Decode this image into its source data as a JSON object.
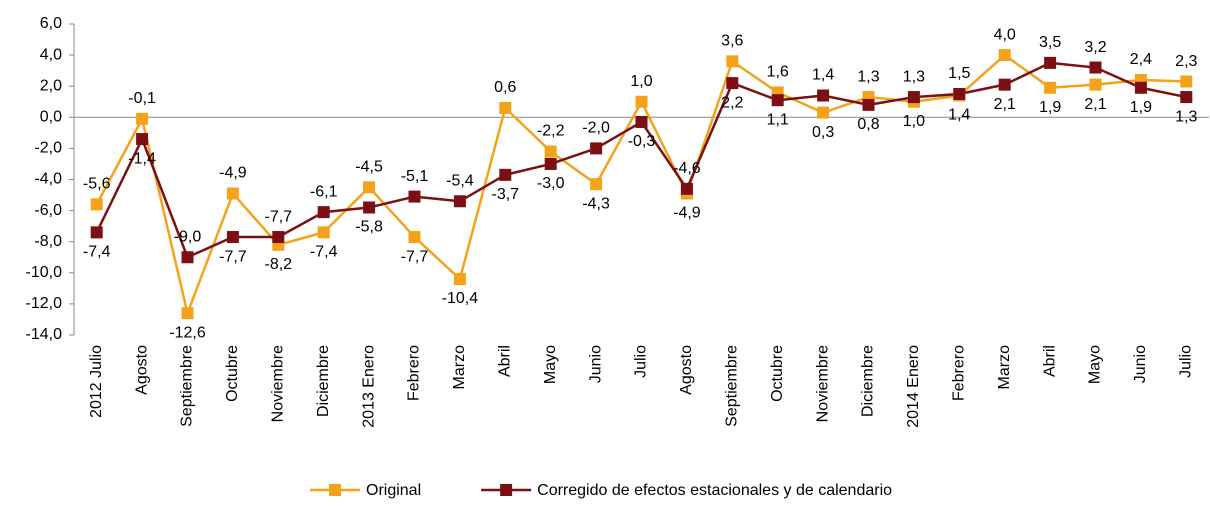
{
  "chart_data": {
    "type": "line",
    "categories": [
      "2012 Julio",
      "Agosto",
      "Septiembre",
      "Octubre",
      "Noviembre",
      "Diciembre",
      "2013 Enero",
      "Febrero",
      "Marzo",
      "Abril",
      "Mayo",
      "Junio",
      "Julio",
      "Agosto",
      "Septiembre",
      "Octubre",
      "Noviembre",
      "Diciembre",
      "2014 Enero",
      "Febrero",
      "Marzo",
      "Abril",
      "Mayo",
      "Junio",
      "Julio"
    ],
    "series": [
      {
        "name": "Original",
        "color": "#f5a21b",
        "values": [
          -5.6,
          -0.1,
          -12.6,
          -4.9,
          -8.2,
          -7.4,
          -4.5,
          -7.7,
          -10.4,
          0.6,
          -2.2,
          -4.3,
          1.0,
          -4.9,
          3.6,
          1.6,
          0.3,
          1.3,
          1.0,
          1.4,
          4.0,
          1.9,
          2.1,
          2.4,
          2.3
        ],
        "value_labels": [
          "-5,6",
          "-0,1",
          "-12,6",
          "-4,9",
          "-8,2",
          "-7,4",
          "-4,5",
          "-7,7",
          "-10,4",
          "0,6",
          "-2,2",
          "-4,3",
          "1,0",
          "-4,9",
          "3,6",
          "1,6",
          "0,3",
          "1,3",
          "1,0",
          "1,4",
          "4,0",
          "1,9",
          "2,1",
          "2,4",
          "2,3"
        ]
      },
      {
        "name": "Corregido de efectos estacionales y de calendario",
        "color": "#7b0f14",
        "values": [
          -7.4,
          -1.4,
          -9.0,
          -7.7,
          -7.7,
          -6.1,
          -5.8,
          -5.1,
          -5.4,
          -3.7,
          -3.0,
          -2.0,
          -0.3,
          -4.6,
          2.2,
          1.1,
          1.4,
          0.8,
          1.3,
          1.5,
          2.1,
          3.5,
          3.2,
          1.9,
          1.3
        ],
        "value_labels": [
          "-7,4",
          "-1,4",
          "-9,0",
          "-7,7",
          "-7,7",
          "-6,1",
          "-5,8",
          "-5,1",
          "-5,4",
          "-3,7",
          "-3,0",
          "-2,0",
          "-0,3",
          "-4,6",
          "2,2",
          "1,1",
          "1,4",
          "0,8",
          "1,3",
          "1,5",
          "2,1",
          "3,5",
          "3,2",
          "1,9",
          "1,3"
        ]
      }
    ],
    "ylim": [
      -14,
      6
    ],
    "yticks": [
      {
        "value": 6,
        "label": "6,0"
      },
      {
        "value": 4,
        "label": "4,0"
      },
      {
        "value": 2,
        "label": "2,0"
      },
      {
        "value": 0,
        "label": "0,0"
      },
      {
        "value": -2,
        "label": "-2,0"
      },
      {
        "value": -4,
        "label": "-4,0"
      },
      {
        "value": -6,
        "label": "-6,0"
      },
      {
        "value": -8,
        "label": "-8,0"
      },
      {
        "value": -10,
        "label": "-10,0"
      },
      {
        "value": -12,
        "label": "-12,0"
      },
      {
        "value": -14,
        "label": "-14,0"
      }
    ]
  }
}
